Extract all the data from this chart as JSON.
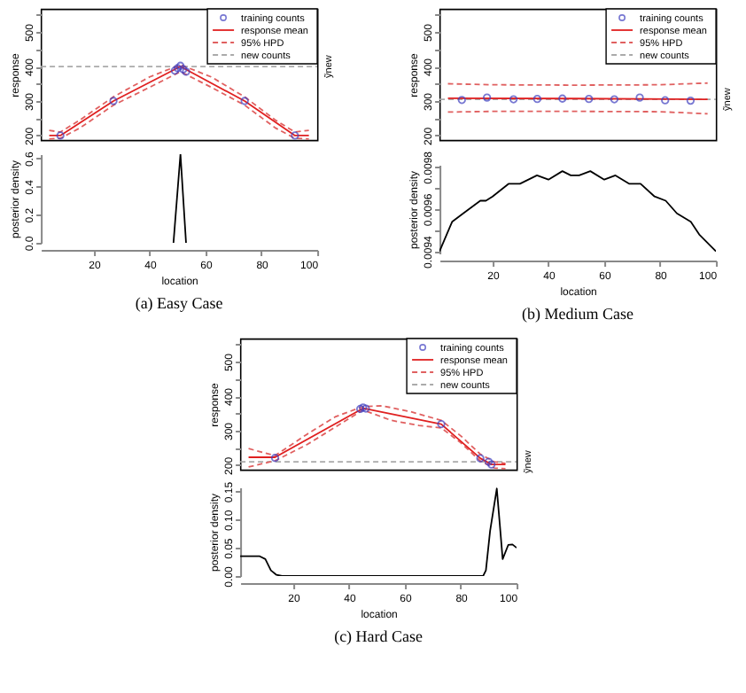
{
  "chart_data": [
    {
      "type": "line",
      "ylabel": "response",
      "xlim": [
        1,
        100
      ],
      "ylim": [
        187,
        567
      ],
      "yticks": [
        200,
        {
          "value": 250,
          "label": null
        },
        300,
        {
          "value": 350,
          "label": null
        },
        400,
        {
          "value": 450,
          "label": null
        },
        500,
        {
          "value": 550,
          "label": null
        }
      ],
      "tick_labels": "y",
      "legend": "top right",
      "annotations": [
        "ỹnew"
      ],
      "series": [
        {
          "name": "new counts",
          "type": "line",
          "line_style": "dashed",
          "color": "#aaaaaa",
          "x": [
            1,
            100
          ],
          "values": [
            400,
            400
          ]
        },
        {
          "name": "95% HPD",
          "type": "line",
          "line_style": "dashed",
          "color": "#e06060",
          "x": [
            4,
            8,
            15,
            27,
            40,
            51,
            62,
            74,
            85,
            92,
            97
          ],
          "values": [
            215,
            210,
            245,
            312,
            370,
            405,
            370,
            312,
            245,
            210,
            215
          ]
        },
        {
          "type": "line",
          "line_style": "dashed",
          "color": "#e06060",
          "x": [
            4,
            8,
            15,
            27,
            40,
            51,
            62,
            74,
            85,
            92,
            97
          ],
          "values": [
            190,
            192,
            222,
            288,
            340,
            385,
            340,
            288,
            222,
            192,
            190
          ]
        },
        {
          "name": "response mean",
          "type": "line",
          "color": "#e02020",
          "x": [
            4,
            8,
            27,
            51,
            74,
            92,
            97
          ],
          "values": [
            200,
            200,
            300,
            400,
            300,
            200,
            200
          ]
        },
        {
          "name": "training counts",
          "type": "scatter",
          "marker": "circle",
          "color": "#4040c0",
          "x": [
            8,
            27,
            49,
            50,
            51,
            52,
            53,
            74,
            92
          ],
          "values": [
            200,
            300,
            388,
            395,
            402,
            392,
            385,
            300,
            200
          ]
        }
      ]
    },
    {
      "type": "line",
      "title": "(a) Easy Case",
      "xlabel": "location",
      "ylabel": "posterior density",
      "xlim": [
        1,
        100
      ],
      "xticks": [
        20,
        40,
        60,
        80,
        100
      ],
      "ylim": [
        0,
        0.63
      ],
      "yticks": [
        {
          "value": 0,
          "label": "0.0"
        },
        0.2,
        0.4,
        0.6
      ],
      "series": [
        {
          "color": "#000000",
          "x": [
            48.5,
            51,
            53
          ],
          "values": [
            0,
            0.63,
            0
          ]
        }
      ]
    },
    {
      "type": "line",
      "ylabel": "response",
      "xlim": [
        1,
        100
      ],
      "ylim": [
        187,
        567
      ],
      "yticks": [
        200,
        {
          "value": 250,
          "label": null
        },
        300,
        {
          "value": 350,
          "label": null
        },
        400,
        {
          "value": 450,
          "label": null
        },
        500,
        {
          "value": 550,
          "label": null
        }
      ],
      "tick_labels": "y",
      "legend": "top right",
      "annotations": [
        "ỹnew"
      ],
      "series": [
        {
          "name": "new counts",
          "type": "line",
          "line_style": "dashed",
          "color": "#aaaaaa",
          "x": [
            1,
            100
          ],
          "values": [
            305,
            305
          ]
        },
        {
          "name": "95% HPD",
          "type": "line",
          "line_style": "dashed",
          "color": "#e06060",
          "x": [
            4,
            20,
            50,
            80,
            97
          ],
          "values": [
            350,
            347,
            346,
            347,
            352
          ]
        },
        {
          "type": "line",
          "line_style": "dashed",
          "color": "#e06060",
          "x": [
            4,
            20,
            50,
            80,
            97
          ],
          "values": [
            268,
            270,
            270,
            269,
            263
          ]
        },
        {
          "name": "response mean",
          "type": "line",
          "color": "#e02020",
          "x": [
            4,
            50,
            97
          ],
          "values": [
            308,
            307,
            305
          ]
        },
        {
          "name": "training counts",
          "type": "scatter",
          "marker": "circle",
          "color": "#4040c0",
          "x": [
            9,
            18,
            27.5,
            36,
            45,
            54.5,
            63.6,
            72.7,
            81.8,
            90.9
          ],
          "values": [
            303,
            310,
            305,
            306,
            307,
            306,
            305,
            310,
            302,
            301
          ]
        }
      ]
    },
    {
      "type": "line",
      "title": "(b) Medium Case",
      "xlabel": "location",
      "ylabel": "posterior density",
      "xlim": [
        1,
        100
      ],
      "xticks": [
        20,
        40,
        60,
        80,
        100
      ],
      "ylim": [
        0.00939,
        0.00981
      ],
      "yticks": [
        0.0094,
        {
          "value": 0.0095,
          "label": null
        },
        0.0096,
        {
          "value": 0.0097,
          "label": null
        },
        0.0098
      ],
      "series": [
        {
          "color": "#000000",
          "x": [
            1,
            5.5,
            9.5,
            15.6,
            17.6,
            20,
            25.7,
            29.8,
            35.9,
            40,
            45,
            48,
            51,
            55,
            60,
            64,
            69,
            73,
            78,
            82,
            86,
            91,
            94,
            100
          ],
          "values": [
            0.0094,
            0.00954,
            0.00958,
            0.00964,
            0.00964,
            0.00966,
            0.00972,
            0.00972,
            0.00976,
            0.00974,
            0.00978,
            0.00976,
            0.00976,
            0.00978,
            0.00974,
            0.00976,
            0.00972,
            0.00972,
            0.00966,
            0.00964,
            0.00958,
            0.00954,
            0.00948,
            0.0094
          ]
        }
      ]
    },
    {
      "type": "line",
      "ylabel": "response",
      "xlim": [
        1,
        100
      ],
      "ylim": [
        187,
        567
      ],
      "yticks": [
        200,
        {
          "value": 250,
          "label": null
        },
        300,
        {
          "value": 350,
          "label": null
        },
        400,
        {
          "value": 450,
          "label": null
        },
        500,
        {
          "value": 550,
          "label": null
        }
      ],
      "tick_labels": "y",
      "legend": "top right",
      "annotations": [
        "ỹnew"
      ],
      "series": [
        {
          "name": "new counts",
          "type": "line",
          "line_style": "dashed",
          "color": "#aaaaaa",
          "x": [
            1,
            100
          ],
          "values": [
            210,
            210
          ]
        },
        {
          "name": "95% HPD",
          "type": "line",
          "line_style": "dashed",
          "color": "#e06060",
          "x": [
            4,
            13.5,
            25,
            35,
            45,
            52,
            62,
            73,
            80,
            87,
            92,
            96
          ],
          "values": [
            248,
            228,
            290,
            340,
            370,
            372,
            355,
            330,
            285,
            232,
            210,
            205
          ]
        },
        {
          "type": "line",
          "line_style": "dashed",
          "color": "#e06060",
          "x": [
            4,
            13.5,
            25,
            35,
            45,
            55,
            65,
            73,
            80,
            87,
            92,
            96
          ],
          "values": [
            195,
            213,
            260,
            310,
            360,
            330,
            315,
            308,
            265,
            212,
            192,
            190
          ]
        },
        {
          "name": "response mean",
          "type": "line",
          "color": "#e02020",
          "x": [
            4,
            13.5,
            45,
            73,
            87,
            91,
            96
          ],
          "values": [
            223,
            223,
            365,
            319,
            220,
            202,
            202
          ]
        },
        {
          "name": "training counts",
          "type": "scatter",
          "marker": "circle",
          "color": "#4040c0",
          "x": [
            13.5,
            44,
            45,
            46,
            73,
            87,
            90,
            91
          ],
          "values": [
            221,
            363,
            367,
            364,
            319,
            220,
            210,
            202
          ]
        }
      ]
    },
    {
      "type": "line",
      "title": "(c) Hard Case",
      "xlabel": "location",
      "ylabel": "posterior density",
      "xlim": [
        1,
        100
      ],
      "xticks": [
        20,
        40,
        60,
        80,
        100
      ],
      "ylim": [
        0,
        0.157
      ],
      "yticks": [
        {
          "value": 0,
          "label": "0.00"
        },
        0.05,
        {
          "value": 0.1,
          "label": "0.10"
        },
        0.15
      ],
      "series": [
        {
          "color": "#000000",
          "x": [
            1,
            8,
            10,
            12,
            14,
            16,
            88,
            89,
            90.5,
            92.9,
            94,
            95,
            97,
            98.5,
            100
          ],
          "values": [
            0.035,
            0.035,
            0.03,
            0.01,
            0.002,
            0,
            0,
            0.01,
            0.08,
            0.155,
            0.09,
            0.03,
            0.055,
            0.056,
            0.05
          ]
        }
      ]
    }
  ]
}
